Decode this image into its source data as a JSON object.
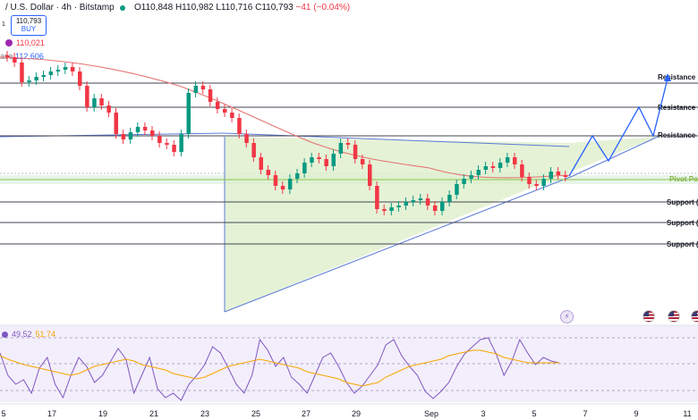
{
  "header": {
    "symbol": "/ U.S. Dollar · 4h · Bitstamp",
    "ohlc": "O110,848 H110,982 L110,716 C110,793",
    "change": "−41 (−0.04%)"
  },
  "buy_box": {
    "price": "110,793",
    "label": "BUY"
  },
  "side_number": "1",
  "indicator_lines": {
    "ma_value": "110,021",
    "line2_prefix": "ase",
    "line2_value": "112,606"
  },
  "levels": {
    "resistance_1": "Resistance (R",
    "resistance_2": "Resistance (R",
    "resistance_3": "Resistance (R",
    "pivot": "Pivot Poi",
    "support_1": "Support (S",
    "support_2": "Support (S",
    "support_3": "Support (S"
  },
  "rsi": {
    "value": "49.52",
    "ma_value": "51.74"
  },
  "x_axis": {
    "ticks": [
      "5",
      "17",
      "19",
      "21",
      "23",
      "25",
      "27",
      "29",
      "Sep",
      "3",
      "5",
      "7",
      "9",
      "11"
    ]
  },
  "colors": {
    "up": "#089981",
    "down": "#f23645",
    "ma": "#e57373",
    "triangle_fill": "#dcedc8",
    "trend_line": "#2962ff",
    "rsi_line": "#7e57c2",
    "rsi_ma": "#f7a600",
    "rsi_band": "#ede7f6"
  },
  "icons": {
    "event": "lightning-event-icon",
    "flag": "us-flag-icon"
  }
}
